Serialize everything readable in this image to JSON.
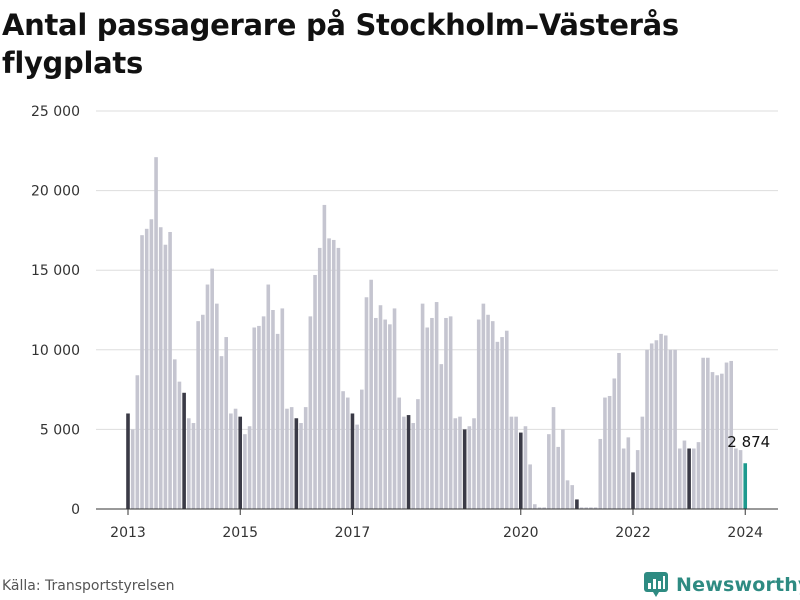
{
  "title": "Antal passagerare på Stockholm–Västerås flygplats",
  "source": "Källa: Transportstyrelsen",
  "brand": {
    "name": "Newsworthy",
    "logo_icon": "newsworthy-logo-icon",
    "color": "#2e8b82"
  },
  "chart_data": {
    "type": "bar",
    "title": "Antal passagerare på Stockholm–Västerås flygplats",
    "xlabel": "",
    "ylabel": "",
    "ylim": [
      0,
      25000
    ],
    "y_ticks": [
      0,
      5000,
      10000,
      15000,
      20000,
      25000
    ],
    "y_tick_labels": [
      "0",
      "5 000",
      "10 000",
      "15 000",
      "20 000",
      "25 000"
    ],
    "x_tick_labels": [
      {
        "label": "2013",
        "month_index": 0
      },
      {
        "label": "2015",
        "month_index": 24
      },
      {
        "label": "2017",
        "month_index": 48
      },
      {
        "label": "2020",
        "month_index": 84
      },
      {
        "label": "2022",
        "month_index": 108
      },
      {
        "label": "2024",
        "month_index": 132
      }
    ],
    "grid": "horizontal",
    "colors": {
      "january": "#3a3a46",
      "other": "#c5c5d0",
      "latest": "#1d9a8e",
      "grid": "#dddddd"
    },
    "start_month": "2013-01",
    "values": [
      6000,
      5000,
      8400,
      17200,
      17600,
      18200,
      22100,
      17700,
      16600,
      17400,
      9400,
      8000,
      7300,
      5700,
      5400,
      11800,
      12200,
      14100,
      15100,
      12900,
      9600,
      10800,
      6000,
      6300,
      5800,
      4700,
      5200,
      11400,
      11500,
      12100,
      14100,
      12500,
      11000,
      12600,
      6300,
      6400,
      5700,
      5400,
      6400,
      12100,
      14700,
      16400,
      19100,
      17000,
      16900,
      16400,
      7400,
      7000,
      6000,
      5300,
      7500,
      13300,
      14400,
      12000,
      12800,
      11900,
      11600,
      12600,
      7000,
      5800,
      5900,
      5400,
      6900,
      12900,
      11400,
      12000,
      13000,
      9100,
      12000,
      12100,
      5700,
      5800,
      5000,
      5200,
      5700,
      11900,
      12900,
      12200,
      11800,
      10500,
      10800,
      11200,
      5800,
      5800,
      4800,
      5200,
      2800,
      300,
      100,
      100,
      4700,
      6400,
      3900,
      5000,
      1800,
      1500,
      600,
      100,
      100,
      100,
      100,
      4400,
      7000,
      7100,
      8200,
      9800,
      3800,
      4500,
      2300,
      3700,
      5800,
      10000,
      10400,
      10600,
      11000,
      10900,
      10000,
      10000,
      3800,
      4300,
      3800,
      3800,
      4200,
      9500,
      9500,
      8600,
      8400,
      8500,
      9200,
      9300,
      3800,
      3700,
      2874
    ],
    "highlight": {
      "month_index": 132,
      "label": "2 874"
    }
  }
}
